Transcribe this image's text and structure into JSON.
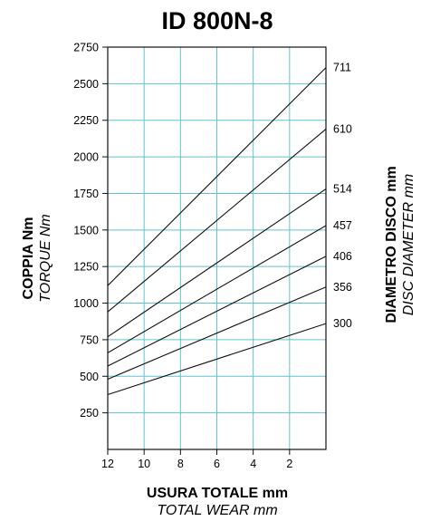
{
  "chart_data": {
    "type": "line",
    "title": "ID 800N-8",
    "ylabel": "COPPIA Nm",
    "ylabel_en": "TORQUE Nm",
    "xlabel": "USURA TOTALE mm",
    "xlabel_en": "TOTAL WEAR mm",
    "right_label": "DIAMETRO DISCO mm",
    "right_label_en": "DISC DIAMETER mm",
    "x_ticks": [
      "12",
      "10",
      "8",
      "6",
      "4",
      "2"
    ],
    "x_tick_values": [
      12,
      10,
      8,
      6,
      4,
      2
    ],
    "y_ticks": [
      "250",
      "500",
      "750",
      "1000",
      "1250",
      "1500",
      "1750",
      "2000",
      "2250",
      "2500",
      "2750"
    ],
    "y_tick_values": [
      250,
      500,
      750,
      1000,
      1250,
      1500,
      1750,
      2000,
      2250,
      2500,
      2750
    ],
    "xlim": [
      12,
      0
    ],
    "ylim": [
      0,
      2750
    ],
    "grid": true,
    "grid_color": "#5fc4cf",
    "line_color": "#111111",
    "series": [
      {
        "name": "711",
        "x": [
          12,
          0
        ],
        "y": [
          1120,
          2610
        ]
      },
      {
        "name": "610",
        "x": [
          12,
          0
        ],
        "y": [
          940,
          2190
        ]
      },
      {
        "name": "514",
        "x": [
          12,
          0
        ],
        "y": [
          770,
          1780
        ]
      },
      {
        "name": "457",
        "x": [
          12,
          0
        ],
        "y": [
          660,
          1530
        ]
      },
      {
        "name": "406",
        "x": [
          12,
          0
        ],
        "y": [
          570,
          1320
        ]
      },
      {
        "name": "356",
        "x": [
          12,
          0
        ],
        "y": [
          480,
          1110
        ]
      },
      {
        "name": "300",
        "x": [
          12,
          0
        ],
        "y": [
          375,
          860
        ]
      }
    ]
  }
}
